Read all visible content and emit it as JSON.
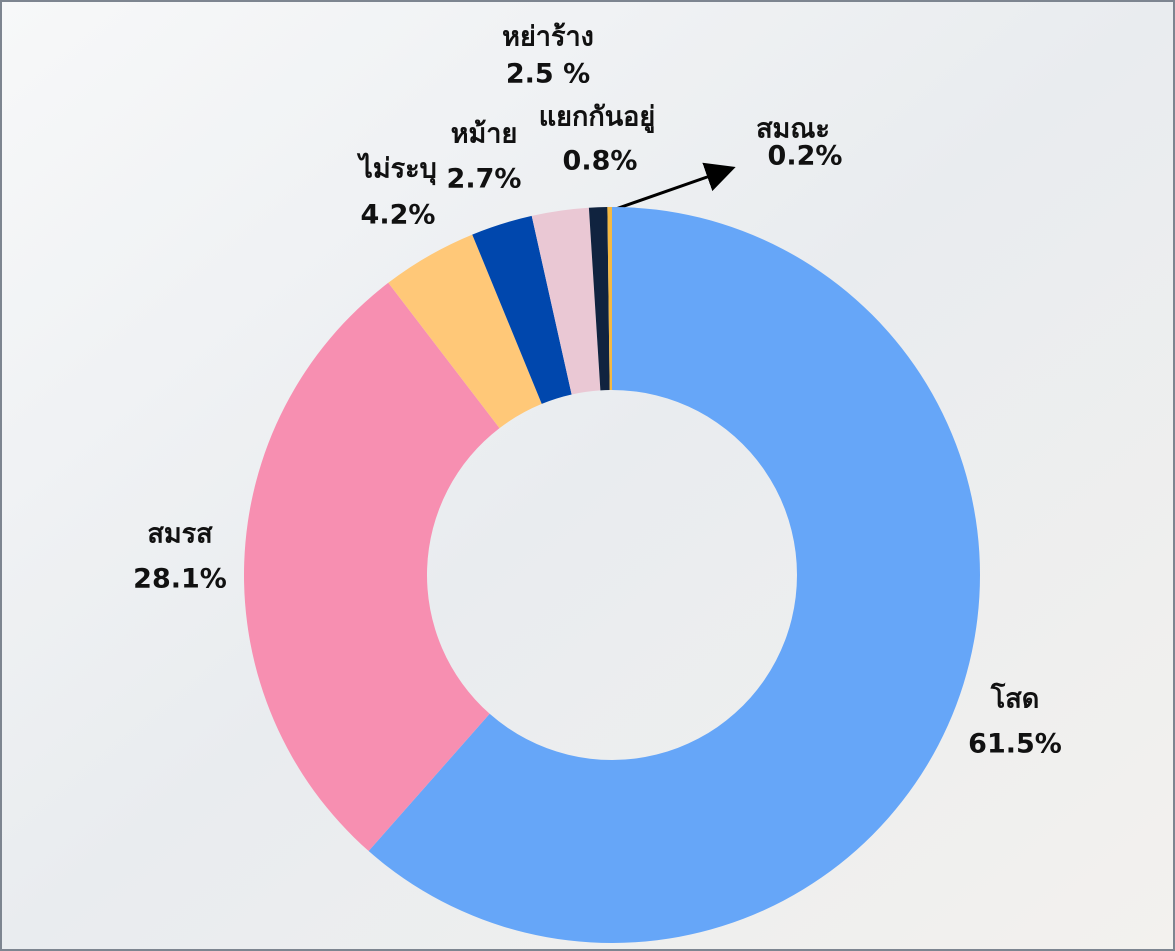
{
  "chart_data": {
    "type": "donut",
    "categories": [
      "โสด",
      "สมรส",
      "ไม่ระบุ",
      "หม้าย",
      "หย่าร้าง",
      "แยกกันอยู่",
      "สมณะ"
    ],
    "values": [
      61.5,
      28.1,
      4.2,
      2.7,
      2.5,
      0.8,
      0.2
    ],
    "value_labels": [
      "61.5%",
      "28.1%",
      "4.2%",
      "2.7%",
      "2.5 %",
      "0.8%",
      "0.2%"
    ],
    "colors": [
      "#66a6f8",
      "#f78fb1",
      "#ffc878",
      "#0047ad",
      "#eac8d4",
      "#10233f",
      "#f5b942"
    ]
  }
}
